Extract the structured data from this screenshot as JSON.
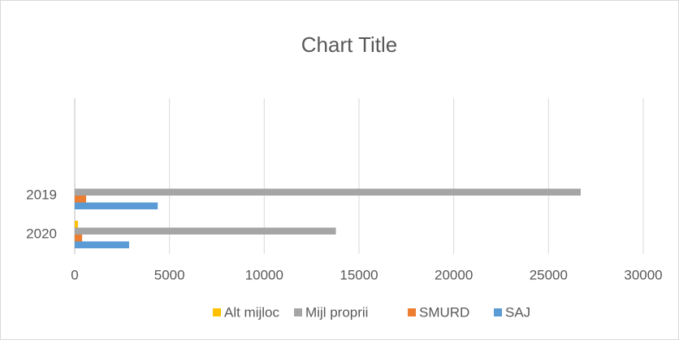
{
  "chart_data": {
    "type": "bar",
    "orientation": "horizontal",
    "title": "Chart Title",
    "categories": [
      "2020",
      "2019",
      null,
      null
    ],
    "series": [
      {
        "name": "Alt mijloc",
        "color": "#ffc000",
        "values": [
          170,
          0,
          null,
          null
        ]
      },
      {
        "name": "Mijl proprii",
        "color": "#a5a5a5",
        "values": [
          13780,
          26700,
          null,
          null
        ]
      },
      {
        "name": "SMURD",
        "color": "#ed7d31",
        "values": [
          390,
          600,
          null,
          null
        ]
      },
      {
        "name": "SAJ",
        "color": "#5b9bd5",
        "values": [
          2870,
          4380,
          null,
          null
        ]
      }
    ],
    "xlim": [
      0,
      30000
    ],
    "xticks": [
      0,
      5000,
      10000,
      15000,
      20000,
      25000,
      30000
    ],
    "grid": true,
    "legend": "bottom"
  }
}
